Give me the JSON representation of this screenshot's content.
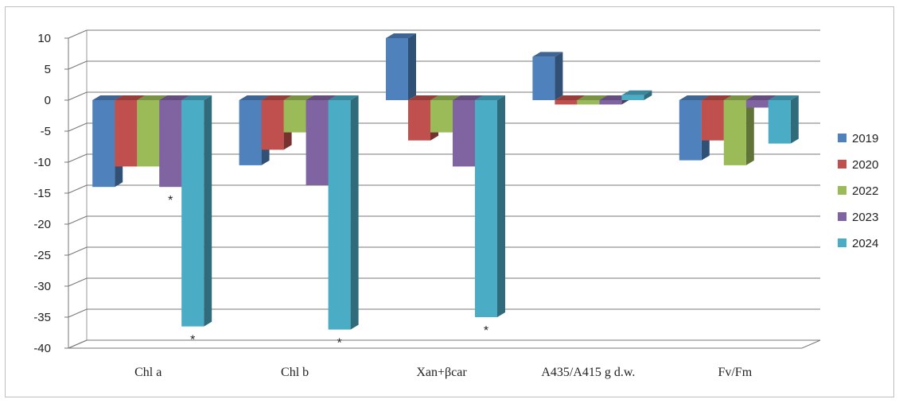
{
  "chart_data": {
    "type": "bar",
    "title": "",
    "xlabel": "",
    "ylabel": "",
    "ylim": [
      -40,
      10
    ],
    "yticks": [
      10,
      5,
      0,
      -5,
      -10,
      -15,
      -20,
      -25,
      -30,
      -35,
      -40
    ],
    "grid": true,
    "legend_position": "right",
    "categories": [
      "Chl a",
      "Chl b",
      "Xan+βcar",
      "A435/A415 g d.w.",
      "Fv/Fm"
    ],
    "series": [
      {
        "name": "2019",
        "color": "#4f81bd",
        "values": [
          -14,
          -10.5,
          10,
          7,
          -9.7
        ]
      },
      {
        "name": "2020",
        "color": "#c0504d",
        "values": [
          -10.7,
          -8,
          -6.5,
          -0.7,
          -6.5
        ]
      },
      {
        "name": "2022",
        "color": "#9bbb59",
        "values": [
          -10.7,
          -5.2,
          -5.2,
          -0.7,
          -10.5
        ]
      },
      {
        "name": "2023",
        "color": "#8064a2",
        "values": [
          -14,
          -13.7,
          -10.7,
          -0.7,
          -1.2
        ]
      },
      {
        "name": "2024",
        "color": "#4bacc6",
        "values": [
          -36.5,
          -37,
          -35,
          0.8,
          -7
        ]
      }
    ],
    "annotations": [
      {
        "category": "Chl a",
        "series": "2023",
        "text": "*"
      },
      {
        "category": "Chl a",
        "series": "2024",
        "text": "*"
      },
      {
        "category": "Chl b",
        "series": "2024",
        "text": "*"
      },
      {
        "category": "Xan+βcar",
        "series": "2024",
        "text": "*"
      }
    ]
  }
}
